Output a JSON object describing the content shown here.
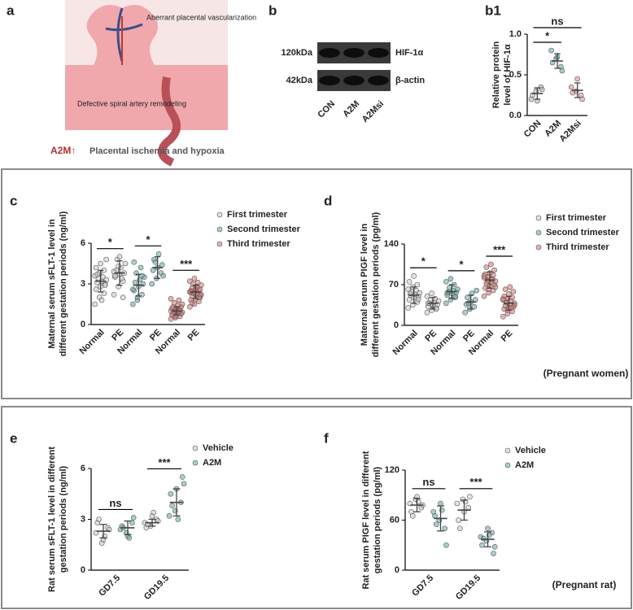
{
  "panel_a": {
    "panel": "a",
    "top_label": "Aberrant placental vascularization",
    "mid_label": "Defective spiral artery remodeling",
    "marker": "A2M↑",
    "caption": "Placental ischemia and hypoxia"
  },
  "panel_b": {
    "panel": "b",
    "bands": [
      {
        "size": "120kDa",
        "protein": "HIF-1α"
      },
      {
        "size": "42kDa",
        "protein": "β-actin"
      }
    ],
    "lanes": [
      "CON",
      "A2M",
      "A2Msi"
    ]
  },
  "chart_data": [
    {
      "type": "dotplot",
      "panel": "b1",
      "ylabel": [
        "Relative protein",
        "level of HIF-1α"
      ],
      "ylim": [
        0,
        1
      ],
      "yticks": [
        {
          "value": 0,
          "label": "0.0"
        },
        {
          "value": 0.5,
          "label": "0.5"
        },
        {
          "value": 1,
          "label": "1.0"
        }
      ],
      "groups": [
        {
          "label": "CON",
          "color": "#b0b0b0",
          "values": [
            0.2,
            0.3,
            0.35,
            0.25,
            0.18,
            0.32
          ],
          "mean": 0.27,
          "sd": 0.07
        },
        {
          "label": "A2M",
          "color": "#5ea8a2",
          "values": [
            0.8,
            0.7,
            0.6,
            0.65,
            0.72,
            0.55
          ],
          "mean": 0.67,
          "sd": 0.09
        },
        {
          "label": "A2Msi",
          "color": "#d98a8a",
          "values": [
            0.35,
            0.3,
            0.25,
            0.28,
            0.45,
            0.2
          ],
          "mean": 0.31,
          "sd": 0.09
        }
      ],
      "brackets": [
        {
          "text": "*",
          "from": 0,
          "to": 1
        },
        {
          "text": "ns",
          "from": 0,
          "to": 2
        }
      ]
    },
    {
      "type": "dotplot",
      "panel": "c",
      "ylabel": [
        "Maternal serum sFLT-1 level  in",
        "different gestation periods (ng/ml)"
      ],
      "ylim": [
        0,
        6
      ],
      "yticks": [
        0,
        3,
        6
      ],
      "legend": [
        {
          "name": "First trimester",
          "color": "#c8c8c8"
        },
        {
          "name": "Second trimester",
          "color": "#5ea8a2"
        },
        {
          "name": "Third trimester",
          "color": "#d9756f"
        }
      ],
      "groups": [
        {
          "label": "Normal",
          "color": "#c8c8c8",
          "values": [
            1.5,
            2.0,
            2.3,
            2.6,
            2.8,
            3.0,
            3.1,
            3.2,
            3.3,
            3.4,
            3.5,
            3.6,
            3.8,
            4.0,
            4.2,
            4.5,
            2.9,
            3.7,
            1.8,
            4.8
          ],
          "mean": 3.2,
          "sd": 0.8
        },
        {
          "label": "PE",
          "color": "#c8c8c8",
          "values": [
            2.2,
            2.8,
            3.2,
            3.5,
            3.7,
            3.8,
            4.0,
            4.2,
            4.5,
            4.8,
            3.4,
            3.9,
            4.3,
            2.0,
            3.6,
            5.0
          ],
          "mean": 3.8,
          "sd": 0.9
        },
        {
          "label": "Normal",
          "color": "#5ea8a2",
          "values": [
            1.5,
            1.8,
            2.2,
            2.5,
            2.8,
            3.0,
            3.1,
            3.3,
            3.5,
            3.8,
            4.2,
            2.6,
            2.0,
            3.6,
            4.6
          ],
          "mean": 2.9,
          "sd": 0.8
        },
        {
          "label": "PE",
          "color": "#5ea8a2",
          "values": [
            3.0,
            3.4,
            3.8,
            4.0,
            4.2,
            4.4,
            4.8,
            5.2,
            3.6,
            4.6
          ],
          "mean": 4.2,
          "sd": 0.8
        },
        {
          "label": "Normal",
          "color": "#d9756f",
          "values": [
            0.4,
            0.5,
            0.6,
            0.7,
            0.7,
            0.8,
            0.8,
            0.9,
            0.9,
            1.0,
            1.0,
            1.0,
            1.1,
            1.1,
            1.2,
            1.2,
            1.3,
            1.3,
            1.4,
            1.5,
            1.6,
            1.8,
            1.9,
            0.6,
            1.0
          ],
          "mean": 1.0,
          "sd": 0.3
        },
        {
          "label": "PE",
          "color": "#d9756f",
          "values": [
            1.3,
            1.5,
            1.7,
            1.8,
            1.9,
            2.0,
            2.1,
            2.2,
            2.2,
            2.3,
            2.3,
            2.4,
            2.4,
            2.5,
            2.5,
            2.6,
            2.6,
            2.7,
            2.8,
            2.9,
            3.0,
            3.1,
            3.2,
            3.4,
            2.0,
            2.4,
            2.6,
            2.2,
            1.6,
            2.8
          ],
          "mean": 2.4,
          "sd": 0.5
        }
      ],
      "brackets": [
        {
          "text": "*",
          "from": 0,
          "to": 1
        },
        {
          "text": "*",
          "from": 2,
          "to": 3
        },
        {
          "text": "***",
          "from": 4,
          "to": 5
        }
      ]
    },
    {
      "type": "dotplot",
      "panel": "d",
      "ylabel": [
        "Maternal serum PIGF level  in",
        "different gestation periods (pg/ml)"
      ],
      "ylim": [
        0,
        140
      ],
      "yticks": [
        0,
        70,
        140
      ],
      "caption": "(Pregnant women)",
      "legend": [
        {
          "name": "First trimester",
          "color": "#c8c8c8"
        },
        {
          "name": "Second trimester",
          "color": "#5ea8a2"
        },
        {
          "name": "Third trimester",
          "color": "#d9756f"
        }
      ],
      "groups": [
        {
          "label": "Normal",
          "color": "#c8c8c8",
          "values": [
            30,
            35,
            40,
            44,
            48,
            50,
            52,
            54,
            56,
            58,
            60,
            62,
            66,
            70,
            75,
            85,
            45,
            55
          ],
          "mean": 52,
          "sd": 14
        },
        {
          "label": "PE",
          "color": "#c8c8c8",
          "values": [
            22,
            26,
            30,
            32,
            34,
            36,
            38,
            40,
            42,
            44,
            46,
            50,
            55,
            28,
            38,
            35
          ],
          "mean": 38,
          "sd": 10
        },
        {
          "label": "Normal",
          "color": "#5ea8a2",
          "values": [
            38,
            44,
            48,
            52,
            55,
            57,
            58,
            60,
            62,
            65,
            70,
            75,
            80,
            50,
            56
          ],
          "mean": 58,
          "sd": 12
        },
        {
          "label": "PE",
          "color": "#5ea8a2",
          "values": [
            22,
            28,
            32,
            36,
            40,
            44,
            48,
            55,
            60,
            38
          ],
          "mean": 40,
          "sd": 12
        },
        {
          "label": "Normal",
          "color": "#d9756f",
          "values": [
            50,
            56,
            60,
            64,
            68,
            70,
            72,
            74,
            76,
            78,
            80,
            82,
            84,
            86,
            88,
            90,
            95,
            100,
            105,
            66,
            75,
            79,
            85,
            62
          ],
          "mean": 78,
          "sd": 14
        },
        {
          "label": "PE",
          "color": "#d9756f",
          "values": [
            15,
            20,
            24,
            28,
            30,
            32,
            34,
            36,
            38,
            40,
            42,
            44,
            46,
            48,
            50,
            54,
            58,
            62,
            66,
            35,
            39,
            30,
            45,
            26
          ],
          "mean": 38,
          "sd": 12
        }
      ],
      "brackets": [
        {
          "text": "*",
          "from": 0,
          "to": 1
        },
        {
          "text": "*",
          "from": 2,
          "to": 3
        },
        {
          "text": "***",
          "from": 4,
          "to": 5
        }
      ]
    },
    {
      "type": "dotplot",
      "panel": "e",
      "ylabel": [
        "Rat serum sFLT-1 level  in different",
        "gestation periods (ng/ml)"
      ],
      "ylim": [
        0,
        6
      ],
      "yticks": [
        0,
        3,
        6
      ],
      "categories": [
        "GD7.5",
        "GD19.5"
      ],
      "legend": [
        {
          "name": "Vehicle",
          "color": "#c8c8c8"
        },
        {
          "name": "A2M",
          "color": "#5ea8a2"
        }
      ],
      "groups": [
        {
          "color": "#c8c8c8",
          "values": [
            2.2,
            1.6,
            2.5,
            2.8,
            1.8,
            2.4,
            3.0,
            2.0
          ],
          "mean": 2.3,
          "sd": 0.4
        },
        {
          "color": "#5ea8a2",
          "values": [
            2.4,
            2.2,
            2.8,
            2.6,
            2.0,
            3.1,
            2.5,
            1.9
          ],
          "mean": 2.5,
          "sd": 0.4
        },
        {
          "color": "#c8c8c8",
          "values": [
            2.8,
            2.6,
            3.0,
            2.5,
            3.2,
            2.9,
            2.7,
            3.4
          ],
          "mean": 2.8,
          "sd": 0.2
        },
        {
          "color": "#5ea8a2",
          "values": [
            3.2,
            3.5,
            4.0,
            4.5,
            4.8,
            5.5,
            3.8,
            3.0,
            5.1
          ],
          "mean": 4.0,
          "sd": 0.8
        }
      ],
      "brackets": [
        {
          "text": "ns",
          "from": 0,
          "to": 1
        },
        {
          "text": "***",
          "from": 2,
          "to": 3
        }
      ]
    },
    {
      "type": "dotplot",
      "panel": "f",
      "ylabel": [
        "Rat serum PIGF level  in different",
        "gestation periods (pg/ml)"
      ],
      "ylim": [
        0,
        120
      ],
      "yticks": [
        0,
        60,
        120
      ],
      "categories": [
        "GD7.5",
        "GD19.5"
      ],
      "caption": "(Pregnant rat)",
      "legend": [
        {
          "name": "Vehicle",
          "color": "#c8c8c8"
        },
        {
          "name": "A2M",
          "color": "#5ea8a2"
        }
      ],
      "groups": [
        {
          "color": "#c8c8c8",
          "values": [
            80,
            85,
            75,
            70,
            88,
            78,
            65,
            82
          ],
          "mean": 78,
          "sd": 8
        },
        {
          "color": "#5ea8a2",
          "values": [
            70,
            60,
            50,
            65,
            80,
            30,
            55,
            72
          ],
          "mean": 62,
          "sd": 15
        },
        {
          "color": "#c8c8c8",
          "values": [
            80,
            85,
            75,
            60,
            70,
            88,
            50,
            82
          ],
          "mean": 72,
          "sd": 12
        },
        {
          "color": "#5ea8a2",
          "values": [
            40,
            35,
            45,
            30,
            50,
            20,
            38,
            42,
            28
          ],
          "mean": 37,
          "sd": 9
        }
      ],
      "brackets": [
        {
          "text": "ns",
          "from": 0,
          "to": 1
        },
        {
          "text": "***",
          "from": 2,
          "to": 3
        }
      ]
    }
  ]
}
